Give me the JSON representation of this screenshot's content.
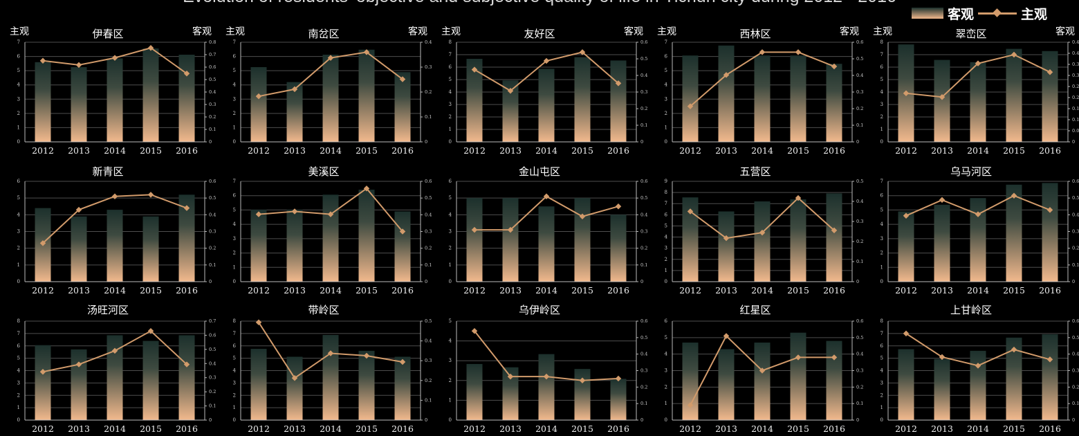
{
  "header": {
    "title": "Evolution of residents' objective and subjective quality of life in Yichun city during 2012 - 2016",
    "legend_objective": "客观",
    "legend_subjective": "主观"
  },
  "colors": {
    "background": "#000000",
    "bar_top": "#1c302c",
    "bar_bottom": "#f2b98d",
    "line": "#d29b6b",
    "grid": "#4e4e4e",
    "axis": "#bbbbbb"
  },
  "axis_labels": {
    "left": "主观",
    "right": "客观"
  },
  "chart_data": [
    {
      "type": "bar+line",
      "title": "伊春区",
      "categories": [
        "2012",
        "2013",
        "2014",
        "2015",
        "2016"
      ],
      "series": [
        {
          "name": "客观",
          "type": "bar",
          "axis": "right",
          "values": [
            0.64,
            0.6,
            0.67,
            0.75,
            0.7
          ]
        },
        {
          "name": "主观",
          "type": "line",
          "axis": "left",
          "values": [
            5.7,
            5.4,
            5.9,
            6.6,
            4.8
          ]
        }
      ],
      "ylim_left": [
        0,
        7
      ],
      "ylim_right": [
        0,
        0.8
      ],
      "yticks_left": [
        0,
        1,
        2,
        3,
        4,
        5,
        6,
        7
      ],
      "yticks_right": [
        "0",
        "0.1",
        "0.2",
        "0.3",
        "0.4",
        "0.5",
        "0.6",
        "0.7",
        "0.8"
      ]
    },
    {
      "type": "bar+line",
      "title": "南岔区",
      "categories": [
        "2012",
        "2013",
        "2014",
        "2015",
        "2016"
      ],
      "series": [
        {
          "name": "客观",
          "type": "bar",
          "axis": "right",
          "values": [
            0.3,
            0.24,
            0.35,
            0.37,
            0.28
          ]
        },
        {
          "name": "主观",
          "type": "line",
          "axis": "left",
          "values": [
            3.2,
            3.7,
            5.9,
            6.3,
            4.4
          ]
        }
      ],
      "ylim_left": [
        0,
        7
      ],
      "ylim_right": [
        0,
        0.4
      ],
      "yticks_left": [
        0,
        1,
        2,
        3,
        4,
        5,
        6,
        7
      ],
      "yticks_right": [
        "0",
        "0.1",
        "0.2",
        "0.3",
        "0.4"
      ]
    },
    {
      "type": "bar+line",
      "title": "友好区",
      "categories": [
        "2012",
        "2013",
        "2014",
        "2015",
        "2016"
      ],
      "series": [
        {
          "name": "客观",
          "type": "bar",
          "axis": "right",
          "values": [
            0.5,
            0.37,
            0.44,
            0.51,
            0.49
          ]
        },
        {
          "name": "主观",
          "type": "line",
          "axis": "left",
          "values": [
            5.8,
            4.1,
            6.5,
            7.2,
            4.7
          ]
        }
      ],
      "ylim_left": [
        0,
        8
      ],
      "ylim_right": [
        0,
        0.6
      ],
      "yticks_left": [
        0,
        1,
        2,
        3,
        4,
        5,
        6,
        7,
        8
      ],
      "yticks_right": [
        "0",
        "0.1",
        "0.2",
        "0.3",
        "0.4",
        "0.5",
        "0.6"
      ]
    },
    {
      "type": "bar+line",
      "title": "西林区",
      "categories": [
        "2012",
        "2013",
        "2014",
        "2015",
        "2016"
      ],
      "series": [
        {
          "name": "客观",
          "type": "bar",
          "axis": "right",
          "values": [
            0.52,
            0.58,
            0.52,
            0.52,
            0.47
          ]
        },
        {
          "name": "主观",
          "type": "line",
          "axis": "left",
          "values": [
            2.5,
            4.7,
            6.3,
            6.3,
            5.3
          ]
        }
      ],
      "ylim_left": [
        0,
        7
      ],
      "ylim_right": [
        0,
        0.6
      ],
      "yticks_left": [
        0,
        1,
        2,
        3,
        4,
        5,
        6,
        7
      ],
      "yticks_right": [
        "0",
        "0.1",
        "0.2",
        "0.3",
        "0.4",
        "0.5",
        "0.6"
      ]
    },
    {
      "type": "bar+line",
      "title": "翠峦区",
      "categories": [
        "2012",
        "2013",
        "2014",
        "2015",
        "2016"
      ],
      "series": [
        {
          "name": "客观",
          "type": "bar",
          "axis": "right",
          "values": [
            0.44,
            0.37,
            0.36,
            0.42,
            0.41
          ]
        },
        {
          "name": "主观",
          "type": "line",
          "axis": "left",
          "values": [
            3.9,
            3.6,
            6.3,
            7.0,
            5.6
          ]
        }
      ],
      "ylim_left": [
        0,
        8
      ],
      "ylim_right": [
        0,
        0.45
      ],
      "yticks_left": [
        0,
        1,
        2,
        3,
        4,
        5,
        6,
        7,
        8
      ],
      "yticks_right": [
        "0",
        "0.05",
        "0.1",
        "0.15",
        "0.2",
        "0.25",
        "0.3",
        "0.35",
        "0.4",
        "0.45"
      ]
    },
    {
      "type": "bar+line",
      "title": "新青区",
      "categories": [
        "2012",
        "2013",
        "2014",
        "2015",
        "2016"
      ],
      "series": [
        {
          "name": "客观",
          "type": "bar",
          "axis": "right",
          "values": [
            0.44,
            0.39,
            0.43,
            0.39,
            0.52
          ]
        },
        {
          "name": "主观",
          "type": "line",
          "axis": "left",
          "values": [
            2.3,
            4.3,
            5.1,
            5.2,
            4.4
          ]
        }
      ],
      "ylim_left": [
        0,
        6
      ],
      "ylim_right": [
        0,
        0.6
      ],
      "yticks_left": [
        0,
        1,
        2,
        3,
        4,
        5,
        6
      ],
      "yticks_right": [
        "0",
        "0.1",
        "0.2",
        "0.3",
        "0.4",
        "0.5",
        "0.6"
      ]
    },
    {
      "type": "bar+line",
      "title": "美溪区",
      "categories": [
        "2012",
        "2013",
        "2014",
        "2015",
        "2016"
      ],
      "series": [
        {
          "name": "客观",
          "type": "bar",
          "axis": "right",
          "values": [
            0.43,
            0.43,
            0.52,
            0.55,
            0.42
          ]
        },
        {
          "name": "主观",
          "type": "line",
          "axis": "left",
          "values": [
            4.7,
            4.9,
            4.7,
            6.5,
            3.5
          ]
        }
      ],
      "ylim_left": [
        0,
        7
      ],
      "ylim_right": [
        0,
        0.6
      ],
      "yticks_left": [
        0,
        1,
        2,
        3,
        4,
        5,
        6,
        7
      ],
      "yticks_right": [
        "0",
        "0.1",
        "0.2",
        "0.3",
        "0.4",
        "0.5",
        "0.6"
      ]
    },
    {
      "type": "bar+line",
      "title": "金山屯区",
      "categories": [
        "2012",
        "2013",
        "2014",
        "2015",
        "2016"
      ],
      "series": [
        {
          "name": "客观",
          "type": "bar",
          "axis": "right",
          "values": [
            0.5,
            0.5,
            0.45,
            0.5,
            0.4
          ]
        },
        {
          "name": "主观",
          "type": "line",
          "axis": "left",
          "values": [
            3.1,
            3.1,
            5.1,
            3.9,
            4.5
          ]
        }
      ],
      "ylim_left": [
        0,
        6
      ],
      "ylim_right": [
        0,
        0.6
      ],
      "yticks_left": [
        0,
        1,
        2,
        3,
        4,
        5,
        6
      ],
      "yticks_right": [
        "0",
        "0.1",
        "0.2",
        "0.3",
        "0.4",
        "0.5",
        "0.6"
      ]
    },
    {
      "type": "bar+line",
      "title": "五营区",
      "categories": [
        "2012",
        "2013",
        "2014",
        "2015",
        "2016"
      ],
      "series": [
        {
          "name": "客观",
          "type": "bar",
          "axis": "right",
          "values": [
            0.42,
            0.35,
            0.4,
            0.41,
            0.44
          ]
        },
        {
          "name": "主观",
          "type": "line",
          "axis": "left",
          "values": [
            6.3,
            3.9,
            4.4,
            7.5,
            4.6
          ]
        }
      ],
      "ylim_left": [
        0,
        9
      ],
      "ylim_right": [
        0,
        0.5
      ],
      "yticks_left": [
        0,
        1,
        2,
        3,
        4,
        5,
        6,
        7,
        8,
        9
      ],
      "yticks_right": [
        "0",
        "0.1",
        "0.2",
        "0.3",
        "0.4",
        "0.5"
      ]
    },
    {
      "type": "bar+line",
      "title": "乌马河区",
      "categories": [
        "2012",
        "2013",
        "2014",
        "2015",
        "2016"
      ],
      "series": [
        {
          "name": "客观",
          "type": "bar",
          "axis": "right",
          "values": [
            0.42,
            0.46,
            0.5,
            0.58,
            0.59
          ]
        },
        {
          "name": "主观",
          "type": "line",
          "axis": "left",
          "values": [
            4.6,
            5.7,
            4.7,
            6.0,
            5.0
          ]
        }
      ],
      "ylim_left": [
        0,
        7
      ],
      "ylim_right": [
        0,
        0.6
      ],
      "yticks_left": [
        0,
        1,
        2,
        3,
        4,
        5,
        6,
        7
      ],
      "yticks_right": [
        "0",
        "0.1",
        "0.2",
        "0.3",
        "0.4",
        "0.5",
        "0.6"
      ]
    },
    {
      "type": "bar+line",
      "title": "汤旺河区",
      "categories": [
        "2012",
        "2013",
        "2014",
        "2015",
        "2016"
      ],
      "series": [
        {
          "name": "客观",
          "type": "bar",
          "axis": "right",
          "values": [
            0.53,
            0.5,
            0.6,
            0.56,
            0.6
          ]
        },
        {
          "name": "主观",
          "type": "line",
          "axis": "left",
          "values": [
            3.9,
            4.5,
            5.6,
            7.2,
            4.5
          ]
        }
      ],
      "ylim_left": [
        0,
        8
      ],
      "ylim_right": [
        0,
        0.7
      ],
      "yticks_left": [
        0,
        1,
        2,
        3,
        4,
        5,
        6,
        7,
        8
      ],
      "yticks_right": [
        "0",
        "0.1",
        "0.2",
        "0.3",
        "0.4",
        "0.5",
        "0.6",
        "0.7"
      ]
    },
    {
      "type": "bar+line",
      "title": "带岭区",
      "categories": [
        "2012",
        "2013",
        "2014",
        "2015",
        "2016"
      ],
      "series": [
        {
          "name": "客观",
          "type": "bar",
          "axis": "right",
          "values": [
            0.36,
            0.32,
            0.43,
            0.35,
            0.32
          ]
        },
        {
          "name": "主观",
          "type": "line",
          "axis": "left",
          "values": [
            7.9,
            3.4,
            5.4,
            5.2,
            4.7
          ]
        }
      ],
      "ylim_left": [
        0,
        8
      ],
      "ylim_right": [
        0,
        0.5
      ],
      "yticks_left": [
        0,
        1,
        2,
        3,
        4,
        5,
        6,
        7,
        8
      ],
      "yticks_right": [
        "0",
        "0.1",
        "0.2",
        "0.3",
        "0.4",
        "0.5"
      ]
    },
    {
      "type": "bar+line",
      "title": "乌伊岭区",
      "categories": [
        "2012",
        "2013",
        "2014",
        "2015",
        "2016"
      ],
      "series": [
        {
          "name": "客观",
          "type": "bar",
          "axis": "right",
          "values": [
            0.34,
            0.32,
            0.4,
            0.31,
            0.25
          ]
        },
        {
          "name": "主观",
          "type": "line",
          "axis": "left",
          "values": [
            4.5,
            2.2,
            2.2,
            2.0,
            2.1
          ]
        }
      ],
      "ylim_left": [
        0,
        5
      ],
      "ylim_right": [
        0,
        0.6
      ],
      "yticks_left": [
        0,
        1,
        2,
        3,
        4,
        5
      ],
      "yticks_right": [
        "0",
        "0.1",
        "0.2",
        "0.3",
        "0.4",
        "0.5",
        "0.6"
      ]
    },
    {
      "type": "bar+line",
      "title": "红星区",
      "categories": [
        "2012",
        "2013",
        "2014",
        "2015",
        "2016"
      ],
      "series": [
        {
          "name": "客观",
          "type": "bar",
          "axis": "right",
          "values": [
            0.47,
            0.43,
            0.47,
            0.53,
            0.48
          ]
        },
        {
          "name": "主观",
          "type": "line",
          "axis": "left",
          "values": [
            0.9,
            5.1,
            3.0,
            3.8,
            3.8
          ]
        }
      ],
      "ylim_left": [
        0,
        6
      ],
      "ylim_right": [
        0,
        0.6
      ],
      "yticks_left": [
        0,
        1,
        2,
        3,
        4,
        5,
        6
      ],
      "yticks_right": [
        "0",
        "0.1",
        "0.2",
        "0.3",
        "0.4",
        "0.5",
        "0.6"
      ]
    },
    {
      "type": "bar+line",
      "title": "上甘岭区",
      "categories": [
        "2012",
        "2013",
        "2014",
        "2015",
        "2016"
      ],
      "series": [
        {
          "name": "客观",
          "type": "bar",
          "axis": "right",
          "values": [
            0.43,
            0.37,
            0.42,
            0.5,
            0.52
          ]
        },
        {
          "name": "主观",
          "type": "line",
          "axis": "left",
          "values": [
            7.0,
            5.1,
            4.4,
            5.7,
            4.9
          ]
        }
      ],
      "ylim_left": [
        0,
        8
      ],
      "ylim_right": [
        0,
        0.6
      ],
      "yticks_left": [
        0,
        1,
        2,
        3,
        4,
        5,
        6,
        7,
        8
      ],
      "yticks_right": [
        "0",
        "0.1",
        "0.2",
        "0.3",
        "0.4",
        "0.5",
        "0.6"
      ]
    }
  ]
}
